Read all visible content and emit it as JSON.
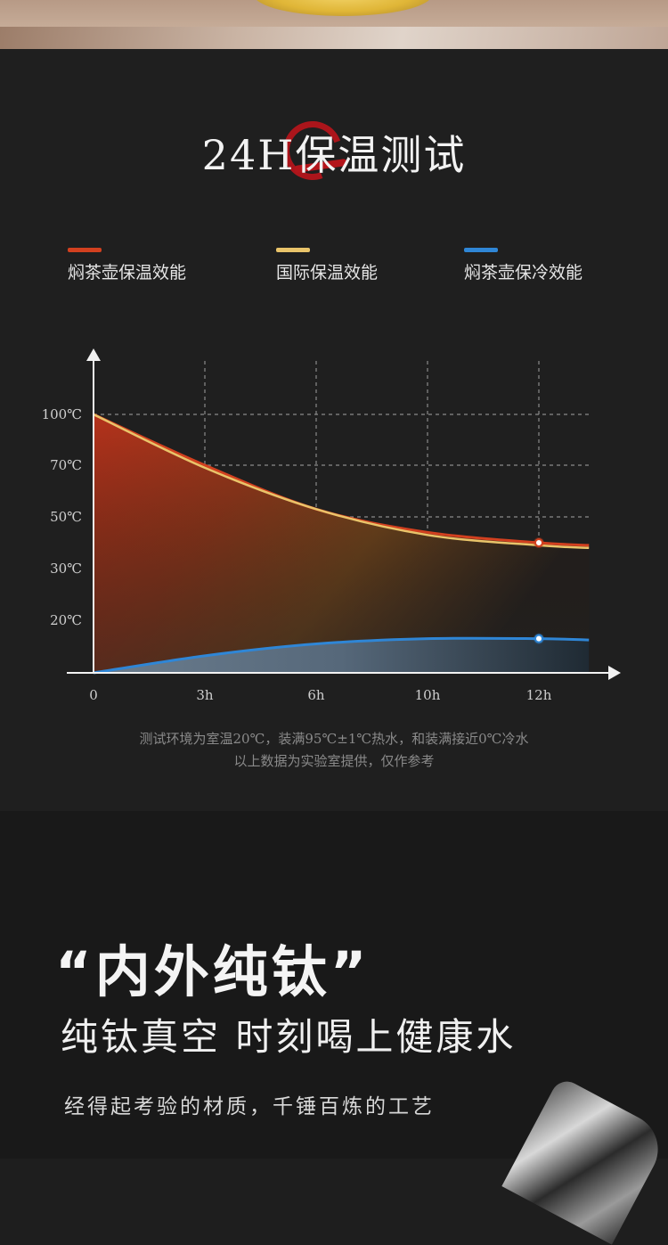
{
  "title": "24H保温测试",
  "colors": {
    "red": "#d2401f",
    "yellow": "#e9c46a",
    "blue": "#2f86d6",
    "background": "#1f1f1f"
  },
  "legend": [
    {
      "label": "焖茶壶保温效能",
      "color": "#d2401f"
    },
    {
      "label": "国际保温效能",
      "color": "#e9c46a"
    },
    {
      "label": "焖茶壶保冷效能",
      "color": "#2f86d6"
    }
  ],
  "chart_data": {
    "type": "area",
    "x_tick_labels": [
      "0",
      "3h",
      "6h",
      "10h",
      "12h"
    ],
    "y_tick_labels": [
      "100℃",
      "70℃",
      "50℃",
      "30℃",
      "20℃"
    ],
    "grid": true,
    "legend_position": "top",
    "series": [
      {
        "name": "焖茶壶保温效能",
        "points": [
          [
            0,
            100
          ],
          [
            1,
            70
          ],
          [
            2,
            53
          ],
          [
            3,
            44
          ],
          [
            4,
            40
          ],
          [
            4.45,
            39
          ]
        ]
      },
      {
        "name": "国际保温效能",
        "points": [
          [
            0,
            100
          ],
          [
            1,
            69
          ],
          [
            2,
            53
          ],
          [
            3,
            43
          ],
          [
            4,
            39
          ],
          [
            4.45,
            38
          ]
        ]
      },
      {
        "name": "焖茶壶保冷效能",
        "points": [
          [
            0,
            0
          ],
          [
            1,
            6.5
          ],
          [
            2,
            11
          ],
          [
            3,
            13
          ],
          [
            4,
            13
          ],
          [
            4.45,
            12.5
          ]
        ]
      }
    ],
    "markers": [
      {
        "series": "焖茶壶保温效能",
        "x": 4,
        "y": 40
      },
      {
        "series": "焖茶壶保冷效能",
        "x": 4,
        "y": 13
      }
    ]
  },
  "notes": {
    "line1": "测试环境为室温20℃，装满95℃±1℃热水，和装满接近0℃冷水",
    "line2": "以上数据为实验室提供，仅作参考"
  },
  "feature": {
    "headline": "“内外纯钛”",
    "subheadline": "纯钛真空  时刻喝上健康水",
    "tagline": "经得起考验的材质，千锤百炼的工艺"
  }
}
